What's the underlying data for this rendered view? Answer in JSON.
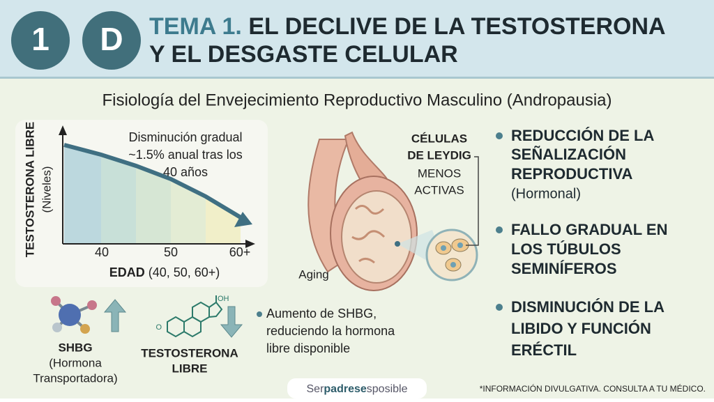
{
  "header": {
    "badges": [
      "1",
      "D"
    ],
    "title_prefix": "TEMA 1.",
    "title_lines": [
      "EL DECLIVE DE LA TESTOSTERONA",
      "Y EL DESGASTE CELULAR"
    ]
  },
  "subtitle": "Fisiología del Envejecimiento Reproductivo Masculino (Andropausia)",
  "graph": {
    "y_label": "TESTOSTERONA LIBRE",
    "y_sublabel": "(Niveles)",
    "annotation_lines": [
      "Disminución gradual",
      "~1.5% anual tras los",
      "40 años"
    ],
    "x_ticks": [
      "40",
      "50",
      "60+"
    ],
    "x_label": "EDAD",
    "x_sublabel": "(40, 50, 60+)"
  },
  "illustration": {
    "cell_label_lines": [
      "CÉLULAS",
      "DE LEYDIG"
    ],
    "cell_note_lines": [
      "MENOS",
      "ACTIVAS"
    ],
    "caption": "Aging"
  },
  "bullets": [
    {
      "bold_lines": [
        "REDUCCIÓN DE LA",
        "SEÑALIZACIÓN",
        "REPRODUCTIVA"
      ],
      "note": "(Hormonal)"
    },
    {
      "bold_lines": [
        "FALLO GRADUAL EN",
        "LOS TÚBULOS",
        "SEMINÍFEROS"
      ]
    },
    {
      "bold_lines": [
        "DISMINUCIÓN DE LA",
        "LIBIDO Y FUNCIÓN",
        "ERÉCTIL"
      ]
    }
  ],
  "bottom": {
    "shbg_title": "SHBG",
    "shbg_lines": [
      "(Hormona",
      "Transportadora)"
    ],
    "steroid_groups": [
      "OH",
      "O"
    ],
    "testosterone_lines": [
      "TESTOSTERONA",
      "LIBRE"
    ],
    "note_lines": [
      "Aumento de SHBG,",
      "reduciendo la hormona",
      "libre disponible"
    ]
  },
  "footer": {
    "brand": [
      "Ser",
      "padrese",
      "sposible"
    ],
    "disclaimer": "*INFORMACIÓN DIVULGATIVA. CONSULTA A TU MÉDICO."
  }
}
